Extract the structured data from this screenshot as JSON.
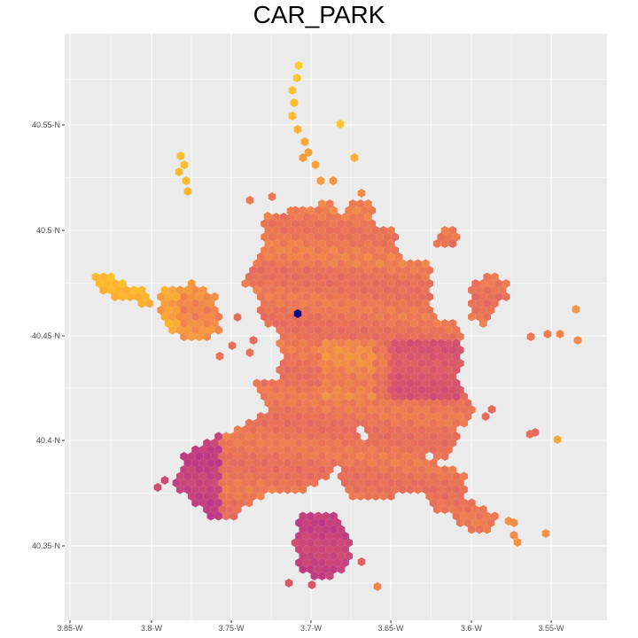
{
  "map": {
    "title": "CAR_PARK",
    "x_ticks": [
      "3.85·W",
      "3.8·W",
      "3.75·W",
      "3.7·W",
      "3.65·W",
      "3.6·W",
      "3.55·W"
    ],
    "y_ticks": [
      "40.55·N",
      "40.5·N",
      "40.45·N",
      "40.4·N",
      "40.35·N"
    ],
    "panel_color": "#ebebeb",
    "grid_color": "#ffffff",
    "palette": [
      "#0d0887",
      "#9c179e",
      "#bd3786",
      "#d8576b",
      "#ed7953",
      "#fdb32f",
      "#f0f921"
    ]
  }
}
